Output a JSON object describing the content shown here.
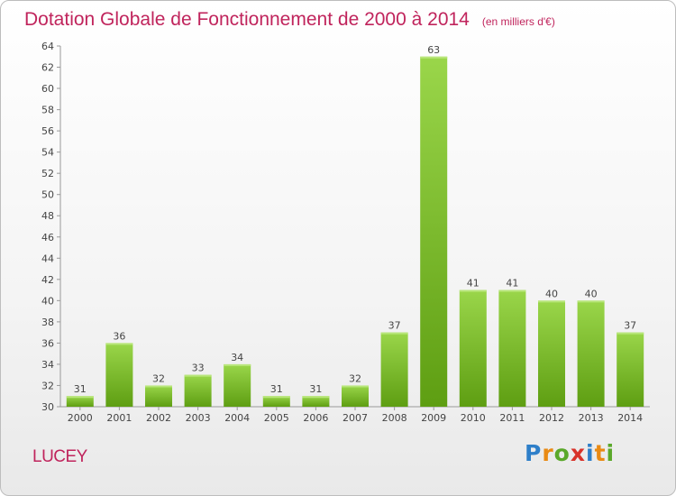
{
  "header": {
    "title": "Dotation Globale de Fonctionnement de 2000 à 2014",
    "unit": "(en milliers d'€)"
  },
  "footer": {
    "place": "LUCEY",
    "logo_letters": [
      "P",
      "r",
      "o",
      "x",
      "i",
      "t",
      "i"
    ]
  },
  "colors": {
    "title": "#c0245c",
    "bar_top": "#9ad64a",
    "bar_bottom": "#5e9e12",
    "logo": [
      "#2e7fc9",
      "#e98a14",
      "#5aa82a",
      "#d8332a",
      "#2e7fc9",
      "#e98a14",
      "#5aa82a"
    ]
  },
  "chart_data": {
    "type": "bar",
    "title": "Dotation Globale de Fonctionnement de 2000 à 2014",
    "subtitle": "(en milliers d'€)",
    "xlabel": "",
    "ylabel": "",
    "categories": [
      "2000",
      "2001",
      "2002",
      "2003",
      "2004",
      "2005",
      "2006",
      "2007",
      "2008",
      "2009",
      "2010",
      "2011",
      "2012",
      "2013",
      "2014"
    ],
    "values": [
      31,
      36,
      32,
      33,
      34,
      31,
      31,
      32,
      37,
      63,
      41,
      41,
      40,
      40,
      37
    ],
    "ylim": [
      30,
      64
    ],
    "yticks": [
      30,
      32,
      34,
      36,
      38,
      40,
      42,
      44,
      46,
      48,
      50,
      52,
      54,
      56,
      58,
      60,
      62,
      64
    ],
    "grid": false,
    "legend": "none"
  }
}
